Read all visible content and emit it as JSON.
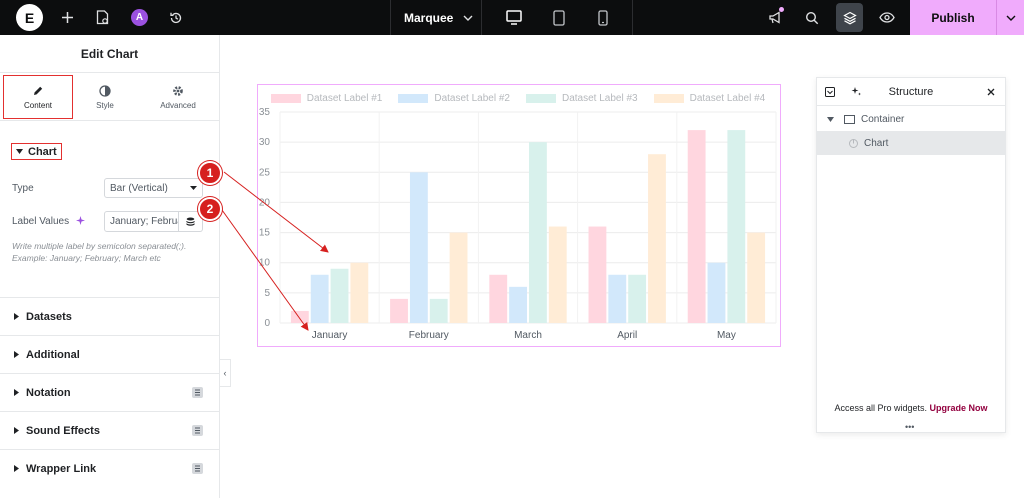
{
  "topbar": {
    "logo": "E",
    "page_name": "Marquee",
    "publish_label": "Publish",
    "ai_badge": "A",
    "colors": {
      "background": "#0c0d0e",
      "publish": "#f0abfc"
    }
  },
  "panel": {
    "title": "Edit Chart",
    "tabs": [
      {
        "label": "Content",
        "icon": "pencil-icon",
        "active": true
      },
      {
        "label": "Style",
        "icon": "half-circle-icon",
        "active": false
      },
      {
        "label": "Advanced",
        "icon": "gear-icon",
        "active": false
      }
    ],
    "section_title": "Chart",
    "type_label": "Type",
    "type_value": "Bar (Vertical)",
    "label_values_label": "Label Values",
    "label_values_value": "January; Februa",
    "help_text_line1": "Write multiple label by semicolon separated(;).",
    "help_text_line2": "Example: January; February; March etc",
    "accordions": [
      {
        "label": "Datasets",
        "pro": false
      },
      {
        "label": "Additional",
        "pro": false
      },
      {
        "label": "Notation",
        "pro": true
      },
      {
        "label": "Sound Effects",
        "pro": true
      },
      {
        "label": "Wrapper Link",
        "pro": true
      }
    ]
  },
  "annotations": {
    "marker_1": "1",
    "marker_2": "2",
    "color": "#d6201f"
  },
  "structure": {
    "title": "Structure",
    "container_label": "Container",
    "chart_label": "Chart",
    "footer_text": "Access all Pro widgets.",
    "footer_link": "Upgrade Now"
  },
  "chart_data": {
    "type": "bar",
    "categories": [
      "January",
      "February",
      "March",
      "April",
      "May"
    ],
    "series": [
      {
        "name": "Dataset Label #1",
        "color": "#ffd6df",
        "values": [
          2,
          4,
          8,
          16,
          32
        ]
      },
      {
        "name": "Dataset Label #2",
        "color": "#d2e8fb",
        "values": [
          8,
          25,
          6,
          8,
          10
        ]
      },
      {
        "name": "Dataset Label #3",
        "color": "#d8f1ec",
        "values": [
          9,
          4,
          30,
          8,
          32
        ]
      },
      {
        "name": "Dataset Label #4",
        "color": "#ffecd6",
        "values": [
          10,
          15,
          16,
          28,
          15
        ]
      }
    ],
    "yticks": [
      "0",
      "5",
      "10",
      "15",
      "20",
      "25",
      "30",
      "35"
    ],
    "ylim": [
      0,
      35
    ],
    "grid": true,
    "legend": "top"
  }
}
